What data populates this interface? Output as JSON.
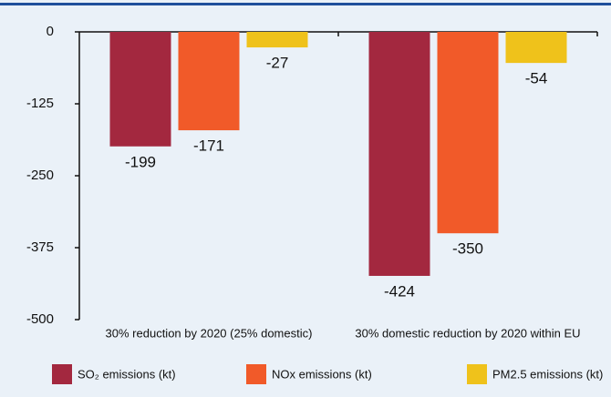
{
  "chart_data": {
    "type": "bar",
    "categories": [
      "30% reduction by 2020 (25% domestic)",
      "30% domestic reduction by 2020 within EU"
    ],
    "series": [
      {
        "name": "SO₂ emissions (kt)",
        "color": "#a3283f",
        "values": [
          -199,
          -424
        ]
      },
      {
        "name": "NOx emissions (kt)",
        "color": "#f15a29",
        "values": [
          -171,
          -350
        ]
      },
      {
        "name": "PM2.5 emissions (kt)",
        "color": "#efc21b",
        "values": [
          -27,
          -54
        ]
      }
    ],
    "ylim": [
      -500,
      0
    ],
    "yticks": [
      0,
      -125,
      -250,
      -375,
      -500
    ],
    "legend": "bottom"
  }
}
